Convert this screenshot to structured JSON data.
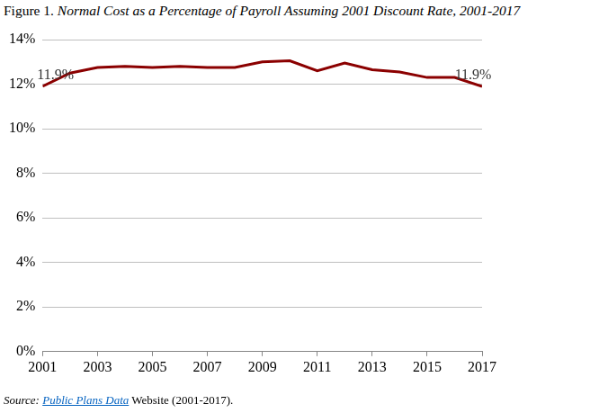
{
  "chart_data": {
    "type": "line",
    "title": "Figure 1. Normal Cost as a Percentage of Payroll Assuming 2001 Discount Rate, 2001-2017",
    "source": {
      "label": "Source:",
      "link": "Public Plans Data",
      "text": "Website (2001-2017)."
    },
    "x": [
      2001,
      2002,
      2003,
      2004,
      2005,
      2006,
      2007,
      2008,
      2009,
      2010,
      2011,
      2012,
      2013,
      2014,
      2015,
      2016,
      2017
    ],
    "values": [
      11.9,
      12.5,
      12.75,
      12.8,
      12.75,
      12.8,
      12.75,
      12.75,
      13.0,
      13.05,
      12.6,
      12.95,
      12.65,
      12.55,
      12.3,
      12.3,
      11.9
    ],
    "color": "#8b0000",
    "xlim": [
      2001,
      2017
    ],
    "xticks": [
      2001,
      2003,
      2005,
      2007,
      2009,
      2011,
      2013,
      2015,
      2017
    ],
    "ylim": [
      0,
      14
    ],
    "yticks": [
      {
        "value": 0,
        "label": "0%"
      },
      {
        "value": 2,
        "label": "2%"
      },
      {
        "value": 4,
        "label": "4%"
      },
      {
        "value": 6,
        "label": "6%"
      },
      {
        "value": 8,
        "label": "8%"
      },
      {
        "value": 10,
        "label": "10%"
      },
      {
        "value": 12,
        "label": "12%"
      },
      {
        "value": 14,
        "label": "14%"
      }
    ],
    "grid": true,
    "annotations": [
      {
        "x": 2001,
        "y": 11.9,
        "label": "11.9%"
      },
      {
        "x": 2017,
        "y": 11.9,
        "label": "11.9%"
      }
    ]
  }
}
